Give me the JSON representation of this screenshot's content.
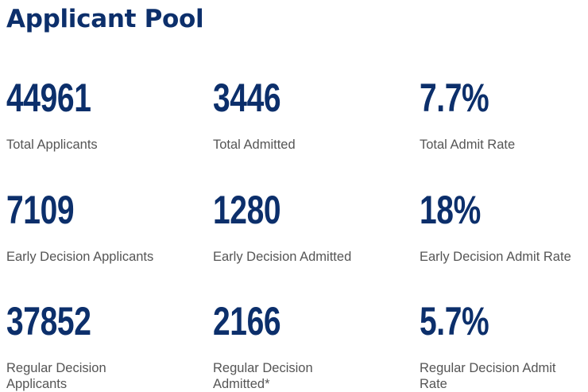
{
  "title": "Applicant Pool",
  "stats": [
    {
      "value": "44961",
      "label": "Total Applicants"
    },
    {
      "value": "3446",
      "label": "Total Admitted"
    },
    {
      "value": "7.7%",
      "label": "Total Admit Rate"
    },
    {
      "value": "7109",
      "label": "Early Decision Applicants"
    },
    {
      "value": "1280",
      "label": "Early Decision Admitted"
    },
    {
      "value": "18%",
      "label": "Early Decision Admit Rate"
    },
    {
      "value": "37852",
      "label": "Regular Decision Applicants"
    },
    {
      "value": "2166",
      "label": "Regular Decision Admitted*"
    },
    {
      "value": "5.7%",
      "label": "Regular Decision Admit Rate"
    }
  ],
  "colors": {
    "primary": "#0c2f6b",
    "label": "#555555"
  }
}
